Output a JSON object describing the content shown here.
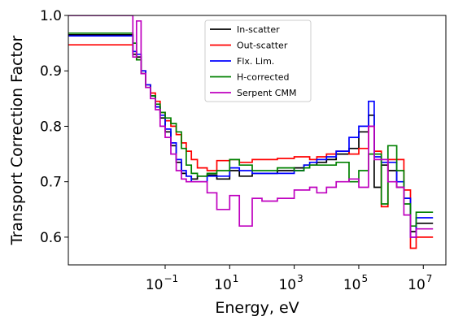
{
  "chart_data": {
    "type": "line",
    "xlabel": "Energy, eV",
    "ylabel": "Transport Correction Factor",
    "xscale": "log",
    "xlim": [
      0.0001,
      50000000
    ],
    "ylim": [
      0.55,
      1.0
    ],
    "x_ticks": [
      {
        "value": 0.1,
        "base": "10",
        "exp": "−1"
      },
      {
        "value": 10,
        "base": "10",
        "exp": "1"
      },
      {
        "value": 1000,
        "base": "10",
        "exp": "3"
      },
      {
        "value": 100000,
        "base": "10",
        "exp": "5"
      },
      {
        "value": 10000000,
        "base": "10",
        "exp": "7"
      }
    ],
    "y_ticks": [
      {
        "value": 0.6,
        "label": "0.6"
      },
      {
        "value": 0.7,
        "label": "0.7"
      },
      {
        "value": 0.8,
        "label": "0.8"
      },
      {
        "value": 0.9,
        "label": "0.9"
      },
      {
        "value": 1.0,
        "label": "1.0"
      }
    ],
    "grid": false,
    "legend_position": "top-center",
    "series": [
      {
        "name": "In-scatter",
        "color": "#000000",
        "style": "step",
        "x": [
          0.0001,
          0.01,
          0.013,
          0.018,
          0.025,
          0.035,
          0.05,
          0.07,
          0.1,
          0.15,
          0.22,
          0.32,
          0.45,
          0.65,
          1,
          2,
          4,
          10,
          20,
          50,
          100,
          300,
          1000,
          2000,
          3000,
          5000,
          10000,
          20000,
          50000,
          100000,
          200000,
          300000,
          500000,
          800000,
          1500000,
          2500000,
          4000000,
          6000000,
          20000000
        ],
        "y": [
          0.965,
          0.93,
          0.925,
          0.895,
          0.875,
          0.855,
          0.835,
          0.815,
          0.79,
          0.765,
          0.735,
          0.715,
          0.71,
          0.705,
          0.71,
          0.712,
          0.705,
          0.72,
          0.71,
          0.715,
          0.715,
          0.72,
          0.725,
          0.73,
          0.73,
          0.735,
          0.74,
          0.75,
          0.76,
          0.79,
          0.82,
          0.69,
          0.73,
          0.72,
          0.69,
          0.67,
          0.61,
          0.625,
          0.625
        ]
      },
      {
        "name": "Out-scatter",
        "color": "#ff0000",
        "style": "step",
        "x": [
          0.0001,
          0.01,
          0.013,
          0.018,
          0.025,
          0.035,
          0.05,
          0.07,
          0.1,
          0.15,
          0.22,
          0.32,
          0.45,
          0.65,
          1,
          2,
          4,
          10,
          20,
          50,
          100,
          300,
          1000,
          2000,
          3000,
          5000,
          10000,
          20000,
          50000,
          100000,
          200000,
          300000,
          500000,
          800000,
          1500000,
          2500000,
          4000000,
          6000000,
          20000000
        ],
        "y": [
          0.947,
          0.935,
          0.92,
          0.9,
          0.875,
          0.86,
          0.845,
          0.825,
          0.81,
          0.8,
          0.785,
          0.77,
          0.755,
          0.74,
          0.725,
          0.72,
          0.738,
          0.74,
          0.735,
          0.74,
          0.74,
          0.742,
          0.745,
          0.745,
          0.74,
          0.745,
          0.75,
          0.755,
          0.75,
          0.76,
          0.8,
          0.755,
          0.655,
          0.74,
          0.74,
          0.685,
          0.58,
          0.6,
          0.6
        ]
      },
      {
        "name": "Flx. Lim.",
        "color": "#0000ff",
        "style": "step",
        "x": [
          0.0001,
          0.01,
          0.013,
          0.018,
          0.025,
          0.035,
          0.05,
          0.07,
          0.1,
          0.15,
          0.22,
          0.32,
          0.45,
          0.65,
          1,
          2,
          4,
          10,
          20,
          50,
          100,
          300,
          1000,
          2000,
          3000,
          5000,
          10000,
          20000,
          50000,
          100000,
          200000,
          300000,
          500000,
          800000,
          1500000,
          2500000,
          4000000,
          6000000,
          20000000
        ],
        "y": [
          0.963,
          0.935,
          0.93,
          0.9,
          0.875,
          0.855,
          0.835,
          0.82,
          0.795,
          0.77,
          0.74,
          0.72,
          0.71,
          0.7,
          0.7,
          0.71,
          0.71,
          0.725,
          0.72,
          0.715,
          0.715,
          0.715,
          0.72,
          0.73,
          0.735,
          0.74,
          0.745,
          0.755,
          0.78,
          0.8,
          0.845,
          0.745,
          0.735,
          0.735,
          0.7,
          0.67,
          0.6,
          0.635,
          0.635
        ]
      },
      {
        "name": "H-corrected",
        "color": "#008000",
        "style": "step",
        "x": [
          0.0001,
          0.01,
          0.013,
          0.018,
          0.025,
          0.035,
          0.05,
          0.07,
          0.1,
          0.15,
          0.22,
          0.32,
          0.45,
          0.65,
          1,
          2,
          4,
          10,
          20,
          50,
          100,
          300,
          1000,
          2000,
          3000,
          5000,
          10000,
          20000,
          50000,
          100000,
          200000,
          300000,
          500000,
          800000,
          1500000,
          2500000,
          4000000,
          6000000,
          20000000
        ],
        "y": [
          0.968,
          0.95,
          0.92,
          0.895,
          0.87,
          0.855,
          0.84,
          0.825,
          0.815,
          0.805,
          0.79,
          0.76,
          0.73,
          0.715,
          0.71,
          0.715,
          0.72,
          0.74,
          0.73,
          0.72,
          0.72,
          0.725,
          0.72,
          0.725,
          0.73,
          0.73,
          0.73,
          0.735,
          0.7,
          0.72,
          0.75,
          0.75,
          0.66,
          0.765,
          0.72,
          0.66,
          0.62,
          0.645,
          0.645
        ]
      },
      {
        "name": "Serpent CMM",
        "color": "#bf00bf",
        "style": "step",
        "x": [
          0.0001,
          0.01,
          0.013,
          0.018,
          0.025,
          0.035,
          0.05,
          0.07,
          0.1,
          0.15,
          0.22,
          0.32,
          0.45,
          0.65,
          1,
          2,
          4,
          10,
          20,
          50,
          100,
          300,
          1000,
          2000,
          3000,
          5000,
          10000,
          20000,
          50000,
          100000,
          200000,
          300000,
          500000,
          800000,
          1500000,
          2500000,
          4000000,
          6000000,
          20000000
        ],
        "y": [
          1.0,
          0.925,
          0.99,
          0.895,
          0.87,
          0.85,
          0.83,
          0.8,
          0.78,
          0.75,
          0.72,
          0.705,
          0.7,
          0.7,
          0.7,
          0.68,
          0.65,
          0.675,
          0.62,
          0.67,
          0.665,
          0.67,
          0.685,
          0.685,
          0.69,
          0.68,
          0.69,
          0.7,
          0.705,
          0.69,
          0.8,
          0.74,
          0.74,
          0.7,
          0.69,
          0.64,
          0.6,
          0.615,
          0.615
        ]
      }
    ]
  }
}
